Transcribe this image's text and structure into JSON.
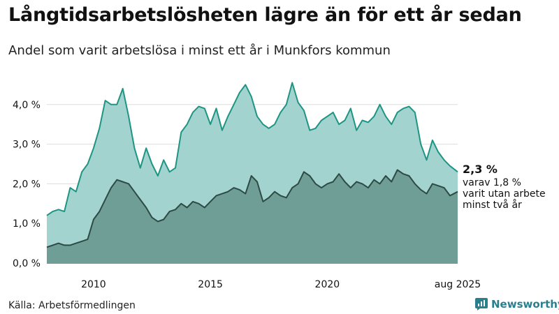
{
  "header": {
    "title": "Långtidsarbetslösheten lägre än för ett år sedan",
    "subtitle": "Andel som varit arbetslösa i minst ett år i Munkfors kommun"
  },
  "footer": {
    "source": "Källa: Arbetsförmedlingen",
    "brand": "Newsworthy"
  },
  "colors": {
    "total_fill": "#a3d3cf",
    "total_line": "#1e9483",
    "long_fill": "#6f9e96",
    "long_line": "#2d4a44",
    "grid": "#dddddd"
  },
  "chart_data": {
    "type": "area",
    "title": "Långtidsarbetslösheten lägre än för ett år sedan",
    "subtitle": "Andel som varit arbetslösa i minst ett år i Munkfors kommun",
    "x_unit": "year",
    "x_ticks": [
      2010,
      2015,
      2020
    ],
    "x_tick_labels": [
      "2010",
      "2015",
      "2020"
    ],
    "x_end_label": "aug 2025",
    "ylim": [
      0,
      4.7
    ],
    "y_ticks": [
      0,
      1,
      2,
      3,
      4
    ],
    "y_tick_labels": [
      "0,0 %",
      "1,0 %",
      "2,0 %",
      "3,0 %",
      "4,0 %"
    ],
    "grid": "horizontal",
    "series": [
      {
        "name": "",
        "x": [
          2008.0,
          2008.25,
          2008.5,
          2008.75,
          2009.0,
          2009.25,
          2009.5,
          2009.75,
          2010.0,
          2010.25,
          2010.5,
          2010.75,
          2011.0,
          2011.25,
          2011.5,
          2011.75,
          2012.0,
          2012.25,
          2012.5,
          2012.75,
          2013.0,
          2013.25,
          2013.5,
          2013.75,
          2014.0,
          2014.25,
          2014.5,
          2014.75,
          2015.0,
          2015.25,
          2015.5,
          2015.75,
          2016.0,
          2016.25,
          2016.5,
          2016.75,
          2017.0,
          2017.25,
          2017.5,
          2017.75,
          2018.0,
          2018.25,
          2018.5,
          2018.75,
          2019.0,
          2019.25,
          2019.5,
          2019.75,
          2020.0,
          2020.25,
          2020.5,
          2020.75,
          2021.0,
          2021.25,
          2021.5,
          2021.75,
          2022.0,
          2022.25,
          2022.5,
          2022.75,
          2023.0,
          2023.25,
          2023.5,
          2023.75,
          2024.0,
          2024.25,
          2024.5,
          2024.75,
          2025.0,
          2025.25,
          2025.58
        ],
        "values": [
          1.2,
          1.3,
          1.35,
          1.3,
          1.9,
          1.8,
          2.3,
          2.5,
          2.9,
          3.4,
          4.1,
          4.0,
          4.0,
          4.4,
          3.7,
          2.9,
          2.4,
          2.9,
          2.5,
          2.2,
          2.6,
          2.3,
          2.4,
          3.3,
          3.5,
          3.8,
          3.95,
          3.9,
          3.5,
          3.9,
          3.35,
          3.7,
          4.0,
          4.3,
          4.5,
          4.2,
          3.7,
          3.5,
          3.4,
          3.5,
          3.8,
          4.0,
          4.55,
          4.05,
          3.85,
          3.35,
          3.4,
          3.6,
          3.7,
          3.8,
          3.5,
          3.6,
          3.9,
          3.35,
          3.6,
          3.55,
          3.7,
          4.0,
          3.7,
          3.5,
          3.8,
          3.9,
          3.95,
          3.8,
          3.0,
          2.6,
          3.1,
          2.8,
          2.6,
          2.45,
          2.3
        ]
      },
      {
        "name": "",
        "x": [
          2008.0,
          2008.25,
          2008.5,
          2008.75,
          2009.0,
          2009.25,
          2009.5,
          2009.75,
          2010.0,
          2010.25,
          2010.5,
          2010.75,
          2011.0,
          2011.25,
          2011.5,
          2011.75,
          2012.0,
          2012.25,
          2012.5,
          2012.75,
          2013.0,
          2013.25,
          2013.5,
          2013.75,
          2014.0,
          2014.25,
          2014.5,
          2014.75,
          2015.0,
          2015.25,
          2015.5,
          2015.75,
          2016.0,
          2016.25,
          2016.5,
          2016.75,
          2017.0,
          2017.25,
          2017.5,
          2017.75,
          2018.0,
          2018.25,
          2018.5,
          2018.75,
          2019.0,
          2019.25,
          2019.5,
          2019.75,
          2020.0,
          2020.25,
          2020.5,
          2020.75,
          2021.0,
          2021.25,
          2021.5,
          2021.75,
          2022.0,
          2022.25,
          2022.5,
          2022.75,
          2023.0,
          2023.25,
          2023.5,
          2023.75,
          2024.0,
          2024.25,
          2024.5,
          2024.75,
          2025.0,
          2025.25,
          2025.58
        ],
        "values": [
          0.4,
          0.45,
          0.5,
          0.45,
          0.45,
          0.5,
          0.55,
          0.6,
          1.1,
          1.3,
          1.6,
          1.9,
          2.1,
          2.05,
          2.0,
          1.8,
          1.6,
          1.4,
          1.15,
          1.05,
          1.1,
          1.3,
          1.35,
          1.5,
          1.4,
          1.55,
          1.5,
          1.4,
          1.55,
          1.7,
          1.75,
          1.8,
          1.9,
          1.85,
          1.75,
          2.2,
          2.05,
          1.55,
          1.65,
          1.8,
          1.7,
          1.65,
          1.9,
          2.0,
          2.3,
          2.2,
          2.0,
          1.9,
          2.0,
          2.05,
          2.25,
          2.05,
          1.9,
          2.05,
          2.0,
          1.9,
          2.1,
          2.0,
          2.2,
          2.05,
          2.35,
          2.25,
          2.2,
          2.0,
          1.85,
          1.75,
          2.0,
          1.95,
          1.9,
          1.7,
          1.8
        ]
      }
    ],
    "end_values": {
      "main_label": "2,3 %",
      "sub_label_lines": [
        "varav 1,8 %",
        "varit utan arbete",
        "minst två år"
      ]
    }
  }
}
